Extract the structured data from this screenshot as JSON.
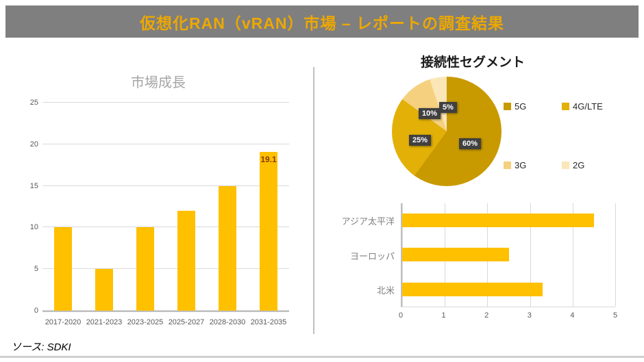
{
  "header": {
    "title": "仮想化RAN（vRAN）市場 – レポートの調査結果",
    "bg_color": "#7F7F7F",
    "title_color": "#EDA800"
  },
  "source": {
    "text": "ソース: SDKI"
  },
  "chart_data": [
    {
      "type": "bar",
      "title": "市場成長",
      "categories": [
        "2017-2020",
        "2021-2023",
        "2023-2025",
        "2025-2027",
        "2028-2030",
        "2031-2035"
      ],
      "values": [
        10,
        5,
        10,
        12,
        15,
        19.1
      ],
      "data_labels": [
        "",
        "",
        "",
        "",
        "",
        "19.1"
      ],
      "ylim": [
        0,
        25
      ],
      "yticks": [
        0,
        5,
        10,
        15,
        20,
        25
      ],
      "bar_color": "#FFC000",
      "label_color": "#843C0B",
      "grid": true,
      "legend_position": "none"
    },
    {
      "type": "pie",
      "title": "接続性セグメント",
      "labels": [
        "5G",
        "4G/LTE",
        "3G",
        "2G"
      ],
      "values": [
        60,
        25,
        10,
        5
      ],
      "pct_labels": [
        "60%",
        "25%",
        "10%",
        "5%"
      ],
      "colors": [
        "#C89A00",
        "#E2B007",
        "#F5D07E",
        "#FBE6B8"
      ],
      "legend_position": "right"
    },
    {
      "type": "bar",
      "orientation": "horizontal",
      "categories": [
        "アジア太平洋",
        "ヨーロッパ",
        "北米"
      ],
      "values": [
        4.5,
        2.5,
        3.3
      ],
      "xlim": [
        0,
        5
      ],
      "xticks": [
        0,
        1,
        2,
        3,
        4,
        5
      ],
      "bar_color": "#FFC000",
      "grid": true,
      "legend_position": "none"
    }
  ]
}
